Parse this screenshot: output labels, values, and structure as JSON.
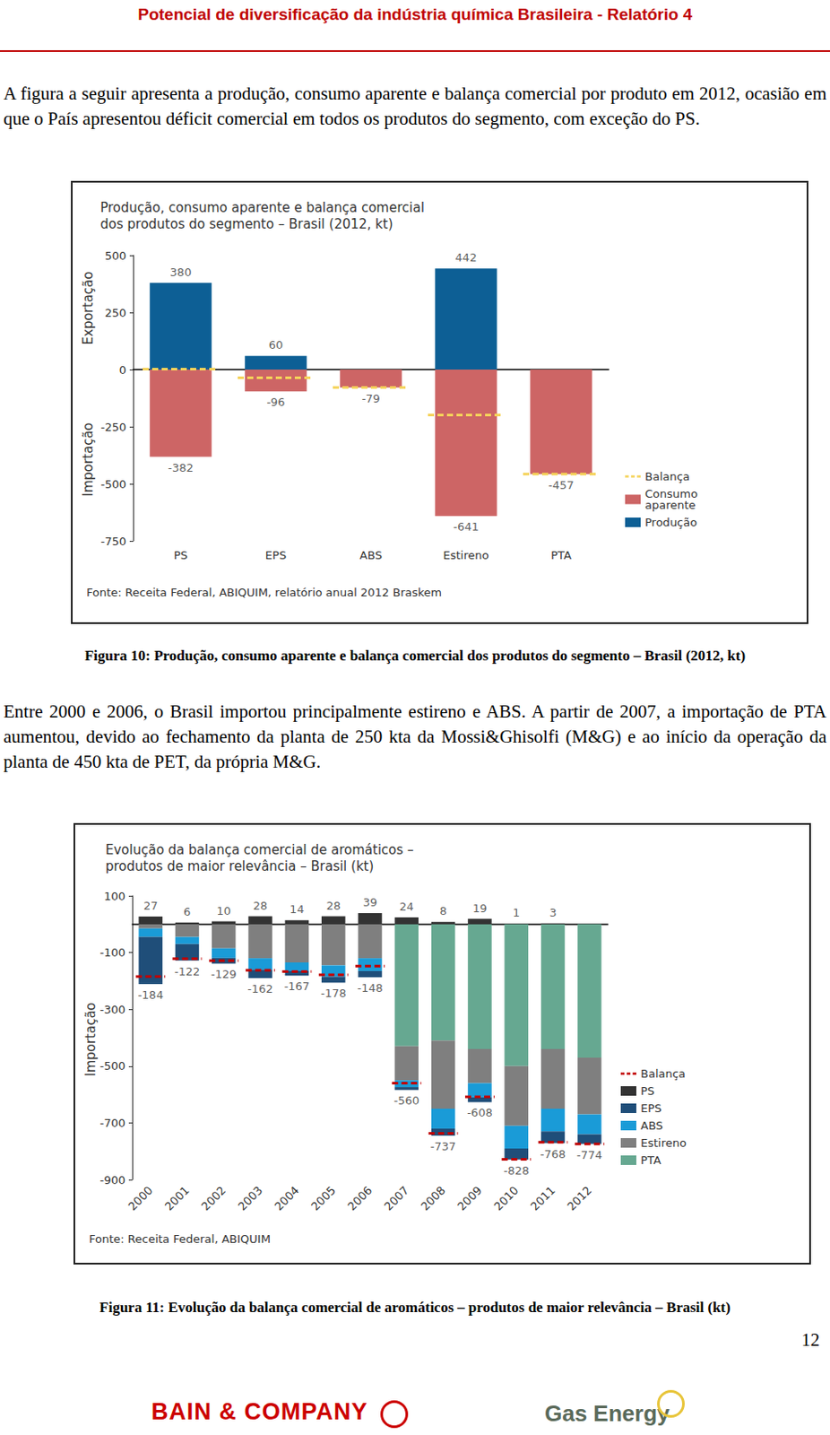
{
  "header": {
    "title": "Potencial de diversificação da indústria química Brasileira - Relatório 4"
  },
  "paragraphs": [
    "A figura a seguir apresenta a produção, consumo aparente e balança comercial por produto em 2012, ocasião em que o País apresentou déficit comercial em todos os produtos do segmento, com exceção do PS.",
    "Entre 2000 e 2006, o Brasil importou principalmente estireno e ABS. A partir de 2007, a importação de PTA aumentou, devido ao fechamento da planta de 250 kta da Mossi&Ghisolfi (M&G) e ao início da operação da planta de 450 kta de PET, da própria M&G."
  ],
  "captions": [
    "Figura 10: Produção, consumo aparente e balança comercial dos produtos do segmento – Brasil (2012, kt)",
    "Figura 11: Evolução da balança comercial de aromáticos – produtos de maior relevância – Brasil (kt)"
  ],
  "chart_data": [
    {
      "type": "bar",
      "title": "Produção, consumo aparente e balança comercial dos produtos do segmento – Brasil (2012, kt)",
      "source": "Fonte: Receita Federal, ABIQUIM, relatório anual 2012 Braskem",
      "annotations": [
        "Exportação",
        "Importação"
      ],
      "categories": [
        "PS",
        "EPS",
        "ABS",
        "Estireno",
        "PTA"
      ],
      "series": [
        {
          "name": "Balança",
          "type": "line",
          "line_style": "dashed",
          "color": "#f5d35a",
          "values": [
            2,
            -36,
            -79,
            -199,
            -457
          ]
        },
        {
          "name": "Consumo aparente",
          "type": "bar",
          "color": "#cd6565",
          "data_labels": true,
          "values": [
            -382,
            -96,
            -79,
            -641,
            -457
          ]
        },
        {
          "name": "Produção",
          "type": "bar",
          "color": "#0d5f95",
          "data_labels": true,
          "values": [
            380,
            60,
            null,
            442,
            null
          ]
        }
      ],
      "ylim": [
        -750,
        500
      ],
      "yticks": [
        -750,
        -500,
        -250,
        0,
        250,
        500
      ],
      "grid": false,
      "stacked": false,
      "legend": "right"
    },
    {
      "type": "bar",
      "title": "Evolução da balança comercial de aromáticos – produtos de maior relevância – Brasil (kt)",
      "source": "Fonte: Receita Federal, ABIQUIM",
      "annotations": [
        "Importação"
      ],
      "categories": [
        "2000",
        "2001",
        "2002",
        "2003",
        "2004",
        "2005",
        "2006",
        "2007",
        "2008",
        "2009",
        "2010",
        "2011",
        "2012"
      ],
      "series": [
        {
          "name": "Balança",
          "type": "line",
          "line_style": "dashed",
          "color": "#c00000",
          "data_labels": true,
          "values": [
            -184,
            -122,
            -129,
            -162,
            -167,
            -178,
            -148,
            -560,
            -737,
            -608,
            -828,
            -768,
            -774
          ]
        },
        {
          "name": "PS",
          "type": "bar",
          "color": "#333333",
          "data_labels": true,
          "values": [
            27,
            6,
            10,
            28,
            14,
            28,
            39,
            24,
            8,
            19,
            1,
            3,
            null
          ]
        },
        {
          "name": "EPS",
          "type": "bar",
          "color": "#1f4e79",
          "values": [
            -166,
            -58,
            -20,
            -30,
            -16,
            -21,
            -22,
            -10,
            -25,
            -17,
            -39,
            -41,
            -34
          ]
        },
        {
          "name": "ABS",
          "type": "bar",
          "color": "#1a9bd7",
          "values": [
            -30,
            -25,
            -34,
            -40,
            -30,
            -40,
            -45,
            -24,
            -70,
            -50,
            -80,
            -80,
            -70
          ]
        },
        {
          "name": "Estireno",
          "type": "bar",
          "color": "#7f7f7f",
          "values": [
            -15,
            -45,
            -85,
            -120,
            -135,
            -145,
            -120,
            -120,
            -240,
            -120,
            -210,
            -210,
            -200
          ]
        },
        {
          "name": "PTA",
          "type": "bar",
          "color": "#66a891",
          "values": [
            null,
            null,
            null,
            null,
            null,
            null,
            null,
            -430,
            -410,
            -440,
            -500,
            -440,
            -470
          ]
        }
      ],
      "ylim": [
        -900,
        100
      ],
      "yticks": [
        -900,
        -700,
        -500,
        -300,
        -100,
        100
      ],
      "grid": false,
      "stacked": true,
      "legend": "right"
    }
  ],
  "page_number": "12",
  "footer": [
    "BAIN & COMPANY",
    "Gas Energy"
  ]
}
